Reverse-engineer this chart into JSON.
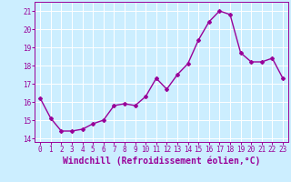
{
  "x": [
    0,
    1,
    2,
    3,
    4,
    5,
    6,
    7,
    8,
    9,
    10,
    11,
    12,
    13,
    14,
    15,
    16,
    17,
    18,
    19,
    20,
    21,
    22,
    23
  ],
  "y": [
    16.2,
    15.1,
    14.4,
    14.4,
    14.5,
    14.8,
    15.0,
    15.8,
    15.9,
    15.8,
    16.3,
    17.3,
    16.7,
    17.5,
    18.1,
    19.4,
    20.4,
    21.0,
    20.8,
    18.7,
    18.2,
    18.2,
    18.4,
    17.3
  ],
  "line_color": "#990099",
  "marker": "D",
  "markersize": 2,
  "linewidth": 1.0,
  "bg_color": "#cceeff",
  "grid_color": "#ffffff",
  "xlabel": "Windchill (Refroidissement éolien,°C)",
  "xlabel_color": "#990099",
  "ylabel_ticks": [
    14,
    15,
    16,
    17,
    18,
    19,
    20,
    21
  ],
  "xtick_labels": [
    "0",
    "1",
    "2",
    "3",
    "4",
    "5",
    "6",
    "7",
    "8",
    "9",
    "10",
    "11",
    "12",
    "13",
    "14",
    "15",
    "16",
    "17",
    "18",
    "19",
    "20",
    "21",
    "22",
    "23"
  ],
  "ylim": [
    13.8,
    21.5
  ],
  "xlim": [
    -0.5,
    23.5
  ],
  "tick_color": "#990099",
  "tick_fontsize": 5.5,
  "xlabel_fontsize": 7.0
}
